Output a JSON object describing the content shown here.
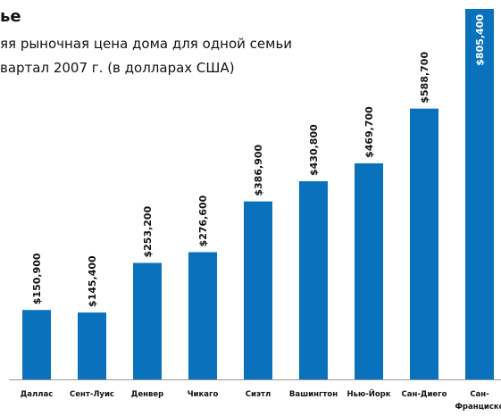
{
  "chart_data": {
    "type": "bar",
    "title": "ье",
    "subtitle": [
      "яя рыночная цена дома для одной семьи",
      "вартал 2007 г. (в долларах США)"
    ],
    "categories": [
      "Даллас",
      "Сент-Луис",
      "Денвер",
      "Чикаго",
      "Сиэтл",
      "Вашингтон",
      "Нью-Йорк",
      "Сан-Диего",
      "Сан- Франциско"
    ],
    "values": [
      150900,
      145400,
      253200,
      276600,
      386900,
      430800,
      469700,
      588700,
      805400
    ],
    "value_labels": [
      "$150,900",
      "$145,400",
      "$253,200",
      "$276,600",
      "$386,900",
      "$430,800",
      "$469,700",
      "$588,700",
      "$805,400"
    ],
    "color": "#0a72bd",
    "ylim": [
      0,
      810000
    ]
  }
}
